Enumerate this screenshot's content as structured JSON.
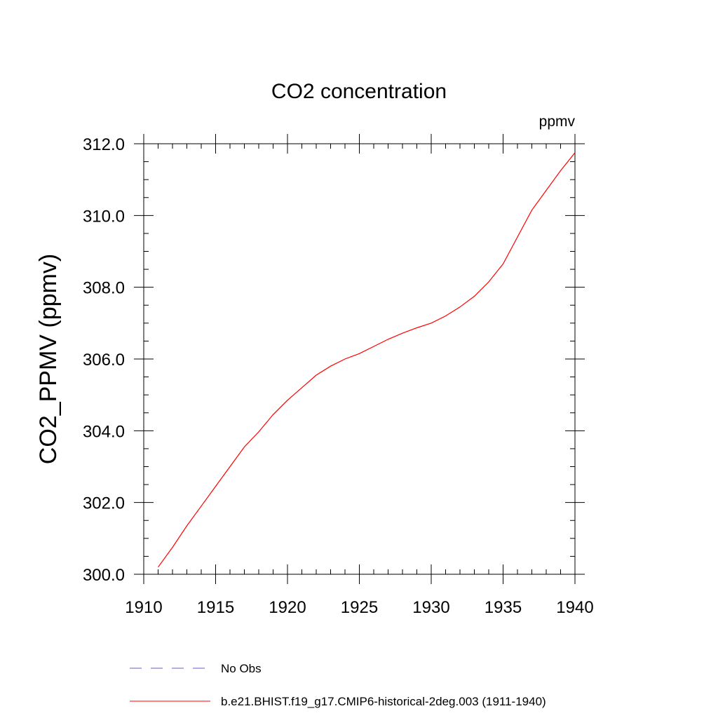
{
  "chart_data": {
    "type": "line",
    "title": "CO2 concentration",
    "units_label": "ppmv",
    "ylabel": "CO2_PPMV  (ppmv)",
    "xlabel": "",
    "xlim": [
      1910,
      1940
    ],
    "ylim": [
      300,
      312
    ],
    "x_ticks": [
      1910,
      1915,
      1920,
      1925,
      1930,
      1935,
      1940
    ],
    "y_ticks": [
      300,
      302,
      304,
      306,
      308,
      310,
      312
    ],
    "y_tick_labels": [
      "300.0",
      "302.0",
      "304.0",
      "306.0",
      "308.0",
      "310.0",
      "312.0"
    ],
    "grid": false,
    "legend_position": "bottom",
    "legend": [
      {
        "label": "No Obs",
        "color": "#6a5acd",
        "style": "dashed"
      },
      {
        "label": "b.e21.BHIST.f19_g17.CMIP6-historical-2deg.003 (1911-1940)",
        "color": "#ff0000",
        "style": "solid"
      }
    ],
    "series": [
      {
        "name": "b.e21.BHIST.f19_g17.CMIP6-historical-2deg.003 (1911-1940)",
        "color": "#ff0000",
        "x": [
          1911,
          1912,
          1913,
          1914,
          1915,
          1916,
          1917,
          1918,
          1919,
          1920,
          1921,
          1922,
          1923,
          1924,
          1925,
          1926,
          1927,
          1928,
          1929,
          1930,
          1931,
          1932,
          1933,
          1934,
          1935,
          1936,
          1937,
          1938,
          1939,
          1940
        ],
        "y": [
          300.2,
          300.75,
          301.35,
          301.9,
          302.45,
          303.0,
          303.55,
          303.97,
          304.45,
          304.85,
          305.2,
          305.55,
          305.8,
          306.0,
          306.15,
          306.35,
          306.55,
          306.72,
          306.87,
          307.0,
          307.2,
          307.45,
          307.75,
          308.15,
          308.65,
          309.4,
          310.15,
          310.7,
          311.25,
          311.75
        ]
      }
    ]
  }
}
